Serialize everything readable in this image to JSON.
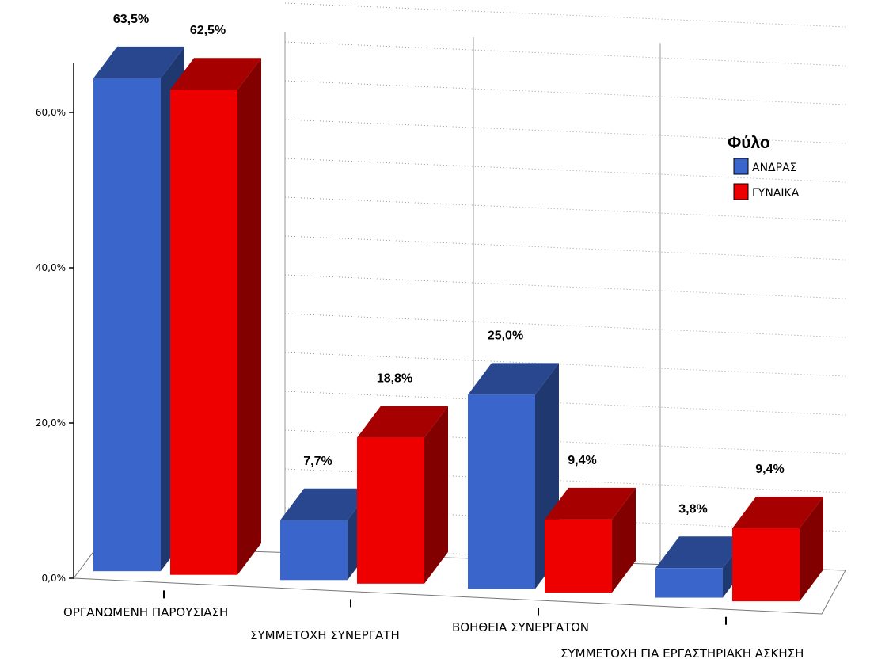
{
  "chart_data": {
    "type": "bar",
    "style": "3d-clustered",
    "categories": [
      "ΟΡΓΑΝΩΜΕΝΗ ΠΑΡΟΥΣΙΑΣΗ",
      "ΣΥΜΜΕΤΟΧΗ ΣΥΝΕΡΓΑΤΗ",
      "ΒΟΗΘΕΙΑ ΣΥΝΕΡΓΑΤΩΝ",
      "ΣΥΜΜΕΤΟΧΗ ΓΙΑ ΕΡΓΑΣΤΗΡΙΑΚΗ ΑΣΚΗΣΗ"
    ],
    "series": [
      {
        "name": "ΑΝΔΡΑΣ",
        "color": "#3a66cc",
        "values": [
          63.5,
          7.7,
          25.0,
          3.8
        ],
        "labels": [
          "63,5%",
          "7,7%",
          "25,0%",
          "3,8%"
        ]
      },
      {
        "name": "ΓΥΝΑΙΚΑ",
        "color": "#ee0000",
        "values": [
          62.5,
          18.8,
          9.4,
          9.4
        ],
        "labels": [
          "62,5%",
          "18,8%",
          "9,4%",
          "9,4%"
        ]
      }
    ],
    "yticks": [
      0,
      20,
      40,
      60
    ],
    "ytick_labels": [
      "0,0%",
      "20,0%",
      "40,0%",
      "60,0%"
    ],
    "ylim": [
      0,
      70
    ],
    "legend": {
      "title": "Φύλο",
      "position": "right"
    },
    "grid": true
  }
}
